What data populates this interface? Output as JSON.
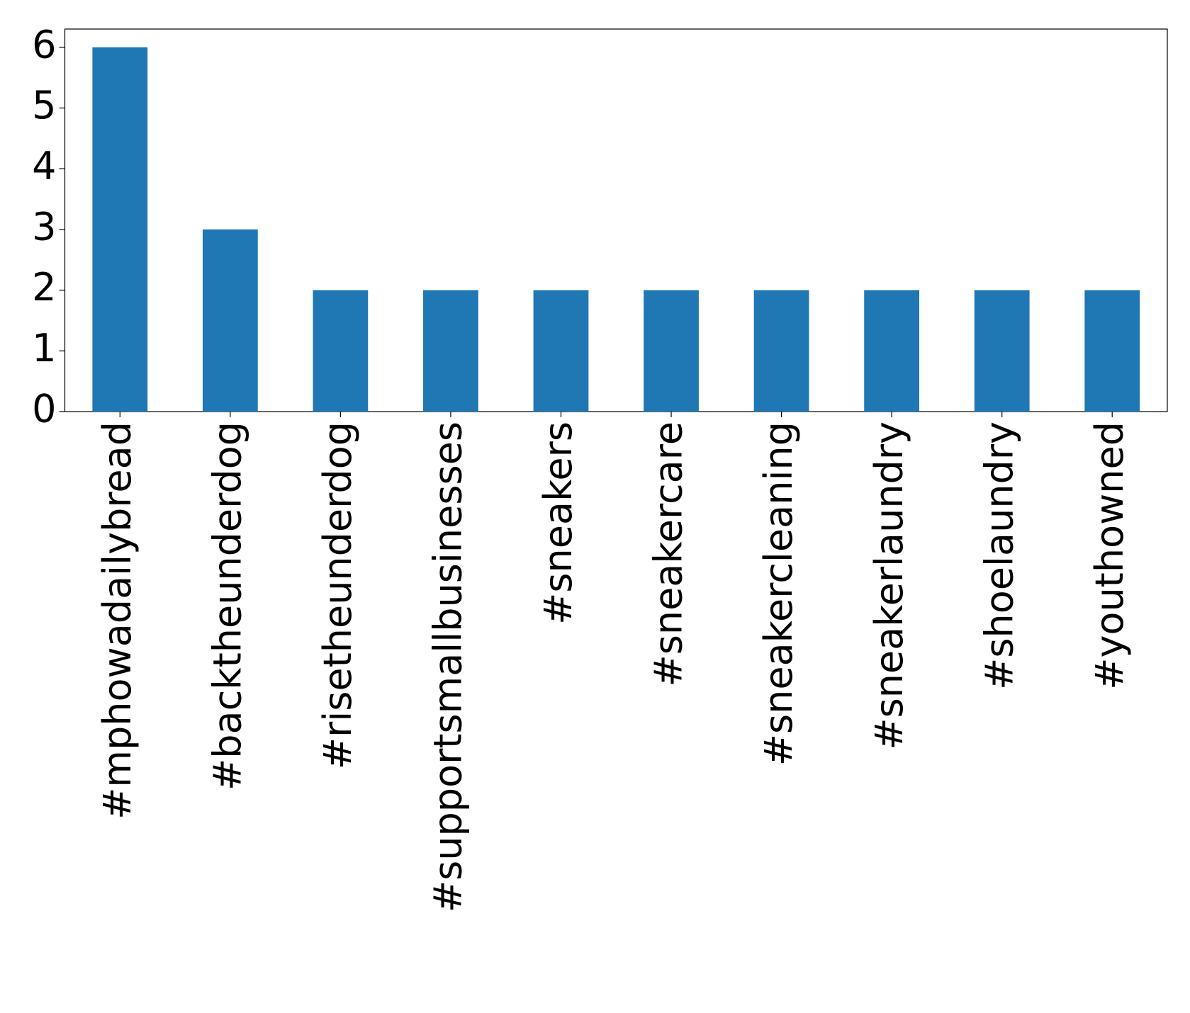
{
  "chart_data": {
    "type": "bar",
    "categories": [
      "#mphowadailybread",
      "#backtheunderdog",
      "#risetheunderdog",
      "#supportsmallbusinesses",
      "#sneakers",
      "#sneakercare",
      "#sneakercleaning",
      "#sneakerlaundry",
      "#shoelaundry",
      "#youthowned"
    ],
    "values": [
      6,
      3,
      2,
      2,
      2,
      2,
      2,
      2,
      2,
      2
    ],
    "color": "#1f77b4",
    "ylim": [
      0,
      6.3
    ],
    "yticks": [
      0,
      1,
      2,
      3,
      4,
      5,
      6
    ],
    "grid": false
  }
}
